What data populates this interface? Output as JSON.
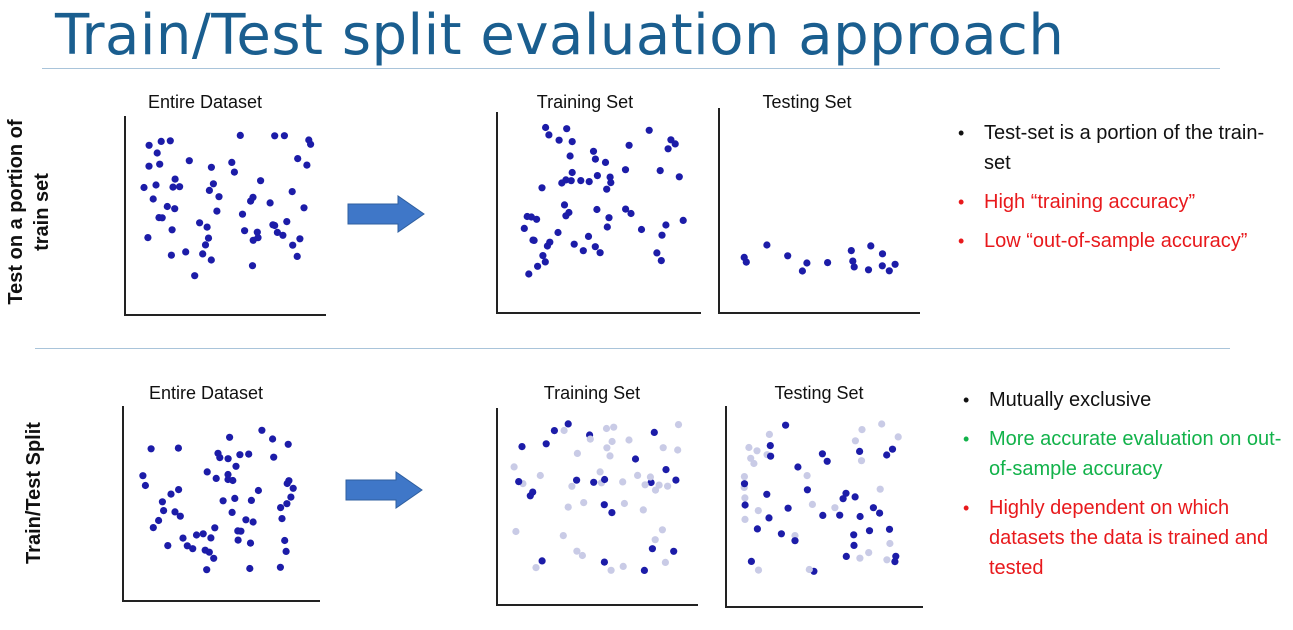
{
  "title": "Train/Test split evaluation approach",
  "colors": {
    "title": "#1a5e8f",
    "dot_dark": "#1c1ca8",
    "dot_light": "#c9cbe6",
    "arrow": "#3f77c8",
    "black": "#111111",
    "red": "#e8191c",
    "green": "#12b24a"
  },
  "rows": [
    {
      "label_line1": "Test on a portion of",
      "label_line2": "train set",
      "panels": {
        "entire": "Entire Dataset",
        "training": "Training Set",
        "testing": "Testing Set"
      },
      "bullets": [
        {
          "text": "Test-set is a portion of the train-set",
          "color": "black"
        },
        {
          "text": "High “training accuracy”",
          "color": "red"
        },
        {
          "text": "Low “out-of-sample accuracy”",
          "color": "red"
        }
      ]
    },
    {
      "label_line1": "Train/Test Split",
      "label_line2": "",
      "panels": {
        "entire": "Entire Dataset",
        "training": "Training Set",
        "testing": "Testing Set"
      },
      "bullets": [
        {
          "text": "Mutually exclusive",
          "color": "black"
        },
        {
          "text": "More accurate evaluation on out-of-sample accuracy",
          "color": "green"
        },
        {
          "text": "Highly dependent on which datasets the data is trained and tested",
          "color": "red"
        }
      ]
    }
  ],
  "icons": [
    "arrow-right-icon"
  ]
}
